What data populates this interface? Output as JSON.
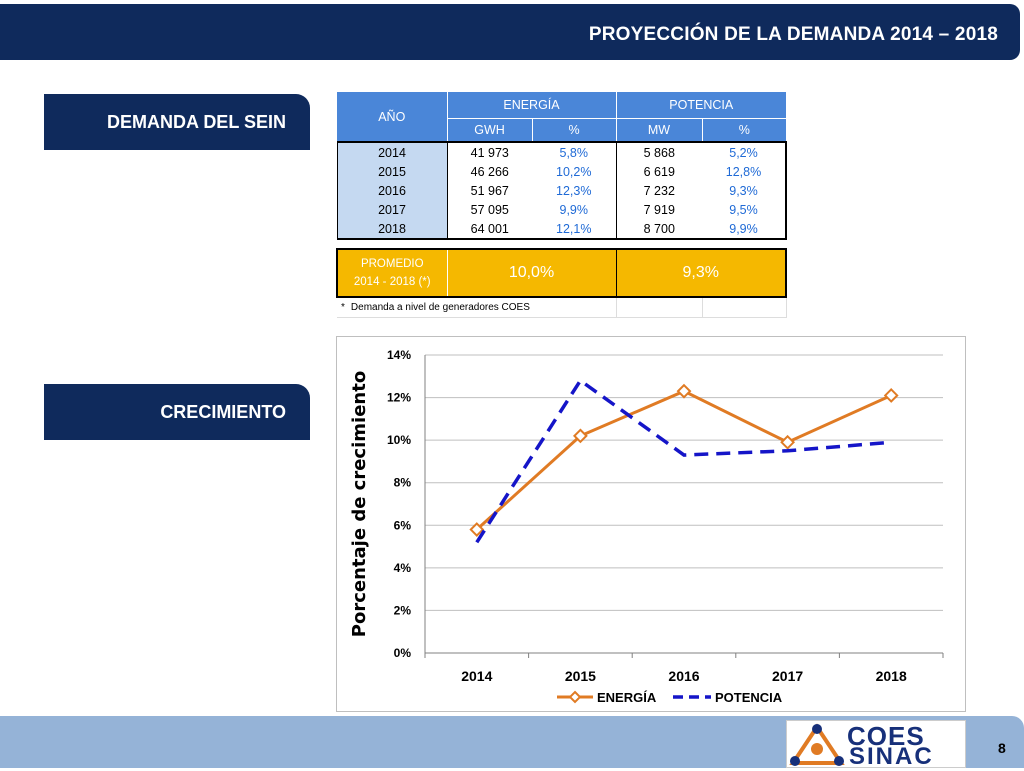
{
  "header": {
    "title": "PROYECCIÓN DE LA DEMANDA 2014 – 2018"
  },
  "sections": {
    "demanda": "DEMANDA DEL SEIN",
    "crecimiento": "CRECIMIENTO"
  },
  "table": {
    "year_header": "AÑO",
    "energy_header": "ENERGÍA",
    "power_header": "POTENCIA",
    "sub_gwh": "GWH",
    "sub_pct": "%",
    "sub_mw": "MW",
    "rows": [
      {
        "year": "2014",
        "gwh": "41 973",
        "e_pct": "5,8%",
        "mw": "5 868",
        "p_pct": "5,2%"
      },
      {
        "year": "2015",
        "gwh": "46 266",
        "e_pct": "10,2%",
        "mw": "6 619",
        "p_pct": "12,8%"
      },
      {
        "year": "2016",
        "gwh": "51 967",
        "e_pct": "12,3%",
        "mw": "7 232",
        "p_pct": "9,3%"
      },
      {
        "year": "2017",
        "gwh": "57 095",
        "e_pct": "9,9%",
        "mw": "7 919",
        "p_pct": "9,5%"
      },
      {
        "year": "2018",
        "gwh": "64 001",
        "e_pct": "12,1%",
        "mw": "8 700",
        "p_pct": "9,9%"
      }
    ],
    "promedio_label1": "PROMEDIO",
    "promedio_label2": "2014 - 2018 (*)",
    "promedio_energy": "10,0%",
    "promedio_power": "9,3%",
    "footnote_mark": "*",
    "footnote": "Demanda a nivel de generadores COES"
  },
  "chart_data": {
    "type": "line",
    "categories": [
      "2014",
      "2015",
      "2016",
      "2017",
      "2018"
    ],
    "series": [
      {
        "name": "ENERGÍA",
        "values": [
          5.8,
          10.2,
          12.3,
          9.9,
          12.1
        ],
        "color": "#e07b24"
      },
      {
        "name": "POTENCIA",
        "values": [
          5.2,
          12.8,
          9.3,
          9.5,
          9.9
        ],
        "color": "#1515c8"
      }
    ],
    "ylabel": "Porcentaje de crecimiento",
    "ylim": [
      0,
      14
    ],
    "yticks": [
      "0%",
      "2%",
      "4%",
      "6%",
      "8%",
      "10%",
      "12%",
      "14%"
    ],
    "grid": true,
    "legend_position": "bottom"
  },
  "footer": {
    "logo_line1": "COES",
    "logo_line2": "SINAC",
    "page_number": "8"
  },
  "colors": {
    "navy": "#0f2a5c",
    "header_blue": "#4a86d8",
    "year_fill": "#c5d9f1",
    "promedio_fill": "#f5b800",
    "footer_blue": "#95b3d7"
  }
}
